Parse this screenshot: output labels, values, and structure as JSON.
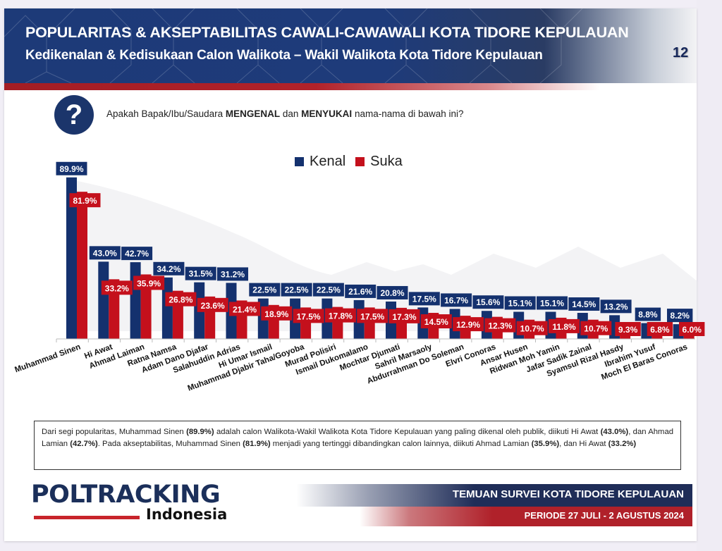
{
  "header": {
    "title": "POPULARITAS & AKSEPTABILITAS CAWALI-CAWAWALI KOTA TIDORE KEPULAUAN",
    "subtitle": "Kedikenalan & Kedisukaan Calon Walikota – Wakil Walikota Kota Tidore Kepulauan",
    "page_number": "12"
  },
  "question": {
    "icon": "question-mark-icon",
    "text_before": "Apakah Bapak/Ibu/Saudara ",
    "bold1": "MENGENAL",
    "text_mid": " dan ",
    "bold2": "MENYUKAI",
    "text_after": " nama-nama di bawah ini?"
  },
  "colors": {
    "kenal": "#14316e",
    "suka": "#c4101c",
    "header_blue": "#1d3a78",
    "accent_red": "#b0212a"
  },
  "chart_data": {
    "type": "bar",
    "title": "",
    "xlabel": "",
    "ylabel": "",
    "ylim": [
      0,
      100
    ],
    "grid": false,
    "legend_position": "top-center",
    "categories": [
      "Muhammad Sinen",
      "Hi Awat",
      "Ahmad Laiman",
      "Ratna Namsa",
      "Adam Dano Djafar",
      "Salahuddin Adrias",
      "Hi Umar Ismail",
      "Muhammad Djabir Taha/Goyoba",
      "Murad Polisiri",
      "Ismail Dukomalamo",
      "Mochtar Djumati",
      "Sahril Marsaoly",
      "Abdurrahman Do Soleman",
      "Elvri Conoras",
      "Ansar Husen",
      "Ridwan Moh Yamin",
      "Jafar Sadik Zainal",
      "Syamsul Rizal Hasdy",
      "Ibrahim Yusuf",
      "Moch El Baras Conoras"
    ],
    "series": [
      {
        "name": "Kenal",
        "values": [
          89.9,
          43.0,
          42.7,
          34.2,
          31.5,
          31.2,
          22.5,
          22.5,
          22.5,
          21.6,
          20.8,
          17.5,
          16.7,
          15.6,
          15.1,
          15.1,
          14.5,
          13.2,
          8.8,
          8.2
        ],
        "labels": [
          "89.9%",
          "43.0%",
          "42.7%",
          "34.2%",
          "31.5%",
          "31.2%",
          "22.5%",
          "22.5%",
          "22.5%",
          "21.6%",
          "20.8%",
          "17.5%",
          "16.7%",
          "15.6%",
          "15.1%",
          "15.1%",
          "14.5%",
          "13.2%",
          "8.8%",
          "8.2%"
        ]
      },
      {
        "name": "Suka",
        "values": [
          81.9,
          33.2,
          35.9,
          26.8,
          23.6,
          21.4,
          18.9,
          17.5,
          17.8,
          17.5,
          17.3,
          14.5,
          12.9,
          12.3,
          10.7,
          11.8,
          10.7,
          9.3,
          6.8,
          6.0
        ],
        "labels": [
          "81.9%",
          "33.2%",
          "35.9%",
          "26.8%",
          "23.6%",
          "21.4%",
          "18.9%",
          "17.5%",
          "17.8%",
          "17.5%",
          "17.3%",
          "14.5%",
          "12.9%",
          "12.3%",
          "10.7%",
          "11.8%",
          "10.7%",
          "9.3%",
          "6.8%",
          "6.0%"
        ]
      }
    ]
  },
  "legend": {
    "kenal": "Kenal",
    "suka": "Suka"
  },
  "summary": {
    "p1": "Dari segi popularitas, Muhammad Sinen ",
    "b1": "(89.9%)",
    "p2": " adalah calon Walikota-Wakil Walikota Kota Tidore Kepulauan yang paling dikenal oleh publik, diikuti Hi Awat ",
    "b2": "(43.0%)",
    "p3": ", dan Ahmad Lamian ",
    "b3": "(42.7%)",
    "p4": ". Pada akseptabilitas, Muhammad Sinen ",
    "b4": "(81.9%)",
    "p5": " menjadi yang tertinggi dibandingkan calon lainnya, diikuti Ahmad Lamian ",
    "b5": "(35.9%)",
    "p6": ", dan Hi Awat ",
    "b6": "(33.2%)"
  },
  "footer": {
    "logo_main": "POLTRACKING",
    "logo_sub": "Indonesia",
    "survey": "TEMUAN SURVEI KOTA TIDORE KEPULAUAN",
    "period": "PERIODE 27 JULI - 2 AGUSTUS 2024"
  }
}
